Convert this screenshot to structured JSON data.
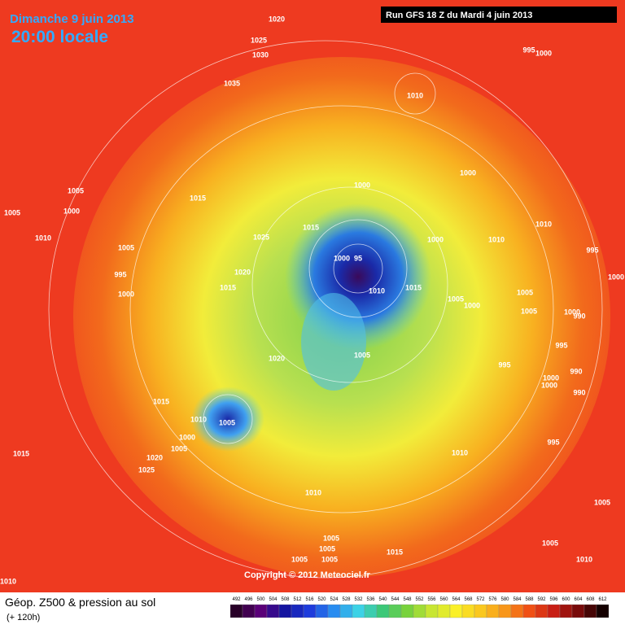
{
  "header": {
    "date": "Dimanche 9 juin 2013",
    "time": "20:00 locale",
    "run": "Run GFS 18 Z du Mardi 4 juin 2013"
  },
  "map": {
    "copyright": "Copyright © 2012 Meteociel.fr",
    "isobar_labels": [
      "1020",
      "1025",
      "1030",
      "1035",
      "995",
      "1000",
      "1010",
      "1005",
      "1005",
      "1000",
      "1015",
      "1000",
      "1000",
      "1010",
      "1025",
      "1015",
      "1010",
      "1000",
      "1010",
      "1005",
      "995",
      "1000",
      "95",
      "995",
      "1020",
      "1000",
      "1015",
      "1010",
      "1015",
      "1000",
      "1005",
      "1005",
      "1000",
      "1005",
      "1000",
      "990",
      "995",
      "1005",
      "1020",
      "995",
      "1000",
      "990",
      "1000",
      "990",
      "1015",
      "1010",
      "1005",
      "1000",
      "1005",
      "995",
      "1010",
      "1015",
      "1020",
      "1025",
      "1010",
      "1005",
      "1005",
      "1005",
      "1015",
      "1005",
      "1005",
      "1005",
      "1010",
      "1010"
    ]
  },
  "footer": {
    "title": "Géop. Z500 & pression au sol",
    "lead": "(+ 120h)",
    "scale": [
      "492",
      "496",
      "500",
      "504",
      "508",
      "512",
      "516",
      "520",
      "524",
      "528",
      "532",
      "536",
      "540",
      "544",
      "548",
      "552",
      "556",
      "560",
      "564",
      "568",
      "572",
      "576",
      "580",
      "584",
      "588",
      "592",
      "596",
      "600",
      "604",
      "608",
      "612"
    ]
  }
}
